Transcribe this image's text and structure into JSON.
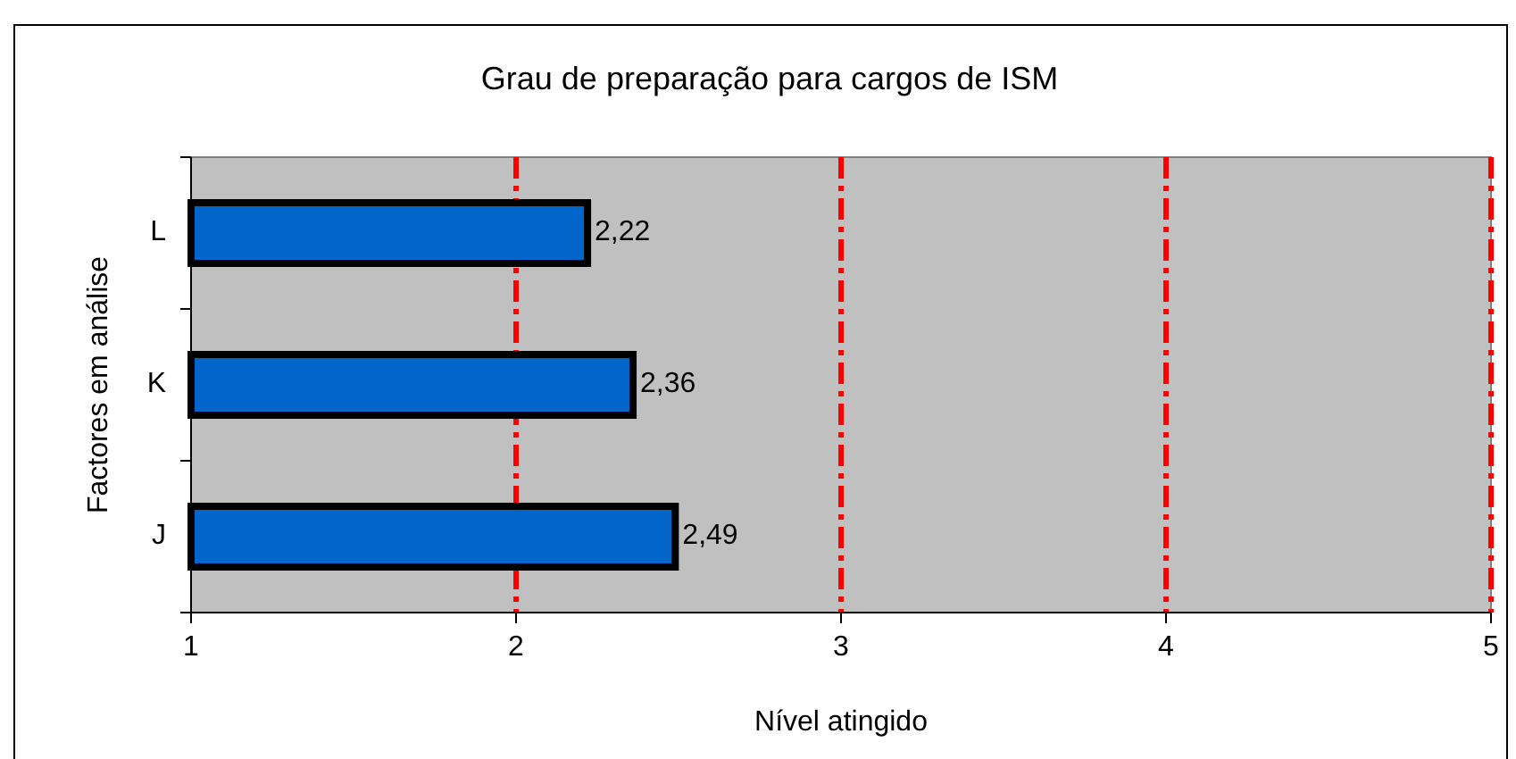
{
  "chart_data": {
    "type": "bar",
    "orientation": "horizontal",
    "title": "Grau de preparação para cargos de ISM",
    "xlabel": "Nível atingido",
    "ylabel": "Factores em análise",
    "categories": [
      "L",
      "K",
      "J"
    ],
    "values": [
      2.22,
      2.36,
      2.49
    ],
    "value_labels": [
      "2,22",
      "2,36",
      "2,49"
    ],
    "color": "#0066cc",
    "xlim": [
      1,
      5
    ],
    "xticks": [
      1,
      2,
      3,
      4,
      5
    ],
    "grid": "x"
  }
}
